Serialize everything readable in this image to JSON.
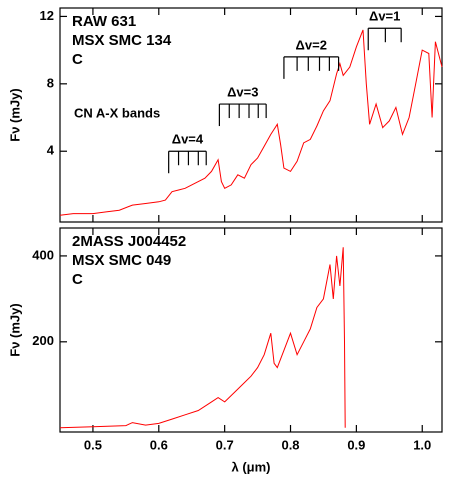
{
  "chart_data": [
    {
      "type": "line",
      "labels": [
        "RAW 631",
        "MSX SMC 134",
        "C"
      ],
      "label_color": "#a0289e",
      "ylabel": "Fν (mJy)",
      "band_title": "CN A-X bands",
      "bands": [
        {
          "name": "Δv=4",
          "level": 4.0,
          "heads": [
            0.615,
            0.63,
            0.645,
            0.66,
            0.672
          ]
        },
        {
          "name": "Δv=3",
          "level": 6.8,
          "heads": [
            0.692,
            0.707,
            0.722,
            0.737,
            0.751,
            0.763
          ]
        },
        {
          "name": "Δv=2",
          "level": 9.6,
          "heads": [
            0.79,
            0.81,
            0.827,
            0.844,
            0.859,
            0.873
          ]
        },
        {
          "name": "Δv=1",
          "level": 11.3,
          "heads": [
            0.918,
            0.944,
            0.968
          ]
        }
      ],
      "series": [
        {
          "color": "#ff0000",
          "x": [
            0.45,
            0.47,
            0.5,
            0.52,
            0.54,
            0.56,
            0.58,
            0.6,
            0.61,
            0.62,
            0.63,
            0.64,
            0.65,
            0.66,
            0.67,
            0.68,
            0.69,
            0.695,
            0.7,
            0.71,
            0.72,
            0.73,
            0.74,
            0.75,
            0.76,
            0.77,
            0.78,
            0.785,
            0.79,
            0.8,
            0.81,
            0.82,
            0.83,
            0.84,
            0.85,
            0.86,
            0.87,
            0.875,
            0.88,
            0.89,
            0.9,
            0.91,
            0.915,
            0.92,
            0.93,
            0.94,
            0.95,
            0.96,
            0.97,
            0.98,
            0.99,
            1.0,
            1.01,
            1.015,
            1.02,
            1.03
          ],
          "values": [
            0.2,
            0.3,
            0.3,
            0.4,
            0.5,
            0.8,
            0.9,
            1.0,
            1.1,
            1.6,
            1.7,
            1.8,
            2.0,
            2.2,
            2.4,
            2.8,
            3.5,
            2.2,
            1.8,
            2.0,
            2.6,
            2.4,
            3.2,
            3.6,
            4.3,
            5.0,
            5.6,
            4.4,
            3.0,
            2.8,
            3.4,
            4.5,
            4.7,
            5.5,
            6.4,
            7.0,
            8.6,
            9.2,
            8.5,
            9.0,
            10.2,
            11.2,
            8.0,
            5.6,
            6.8,
            5.4,
            5.8,
            6.6,
            5.0,
            6.0,
            8.0,
            10.0,
            9.8,
            6.0,
            10.5,
            9.0
          ]
        }
      ],
      "xlim": [
        0.45,
        1.03
      ],
      "xticks": [
        0.5,
        0.6,
        0.7,
        0.8,
        0.9,
        1
      ],
      "ylim": [
        -0.2,
        12.5
      ],
      "yticks": [
        4,
        8,
        12
      ]
    },
    {
      "type": "line",
      "labels": [
        "2MASS J004452",
        "MSX SMC 049",
        "C"
      ],
      "label_color": "#a0289e",
      "ylabel": "Fν (mJy)",
      "xlabel": "λ (μm)",
      "series": [
        {
          "color": "#ff0000",
          "x": [
            0.45,
            0.5,
            0.55,
            0.56,
            0.58,
            0.6,
            0.62,
            0.64,
            0.66,
            0.68,
            0.69,
            0.7,
            0.72,
            0.74,
            0.75,
            0.76,
            0.77,
            0.775,
            0.78,
            0.79,
            0.8,
            0.81,
            0.82,
            0.83,
            0.84,
            0.85,
            0.86,
            0.865,
            0.87,
            0.875,
            0.88,
            0.882,
            0.883
          ],
          "values": [
            0,
            2,
            5,
            12,
            6,
            10,
            20,
            30,
            40,
            60,
            70,
            60,
            90,
            120,
            140,
            170,
            220,
            150,
            140,
            180,
            220,
            170,
            200,
            230,
            280,
            300,
            380,
            300,
            400,
            330,
            420,
            200,
            0
          ]
        }
      ],
      "xlim": [
        0.45,
        1.03
      ],
      "xticks": [
        0.5,
        0.6,
        0.7,
        0.8,
        0.9,
        {
          "value": 1,
          "label": "1.0"
        }
      ],
      "ylim": [
        -10,
        465
      ],
      "yticks": [
        200,
        400
      ]
    }
  ]
}
